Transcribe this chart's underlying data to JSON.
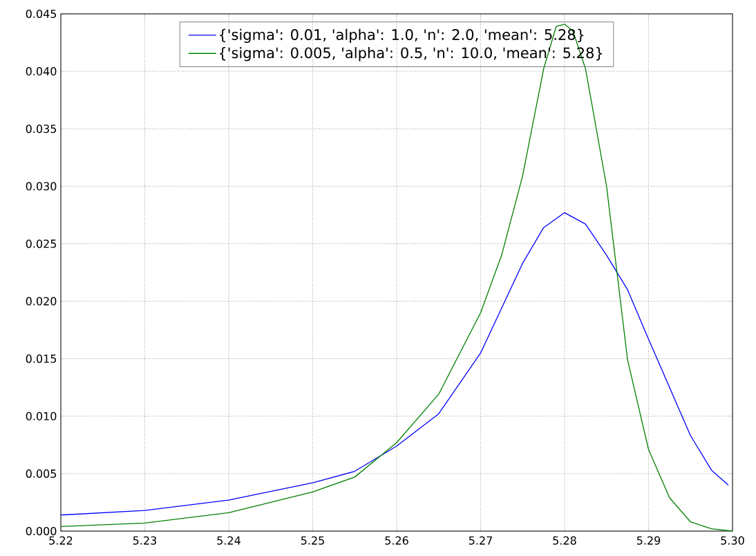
{
  "chart_data": {
    "type": "line",
    "x": [
      5.22,
      5.23,
      5.24,
      5.25,
      5.255,
      5.26,
      5.265,
      5.27,
      5.275,
      5.2775,
      5.28,
      5.2825,
      5.285,
      5.2875,
      5.29,
      5.2925,
      5.295,
      5.2975,
      5.2995
    ],
    "series": [
      {
        "name": "{'sigma': 0.01, 'alpha': 1.0, 'n': 2.0, 'mean': 5.28}",
        "color": "#0000ff",
        "values": [
          0.0014,
          0.0018,
          0.0027,
          0.0042,
          0.0052,
          0.0074,
          0.0102,
          0.0155,
          0.0233,
          0.0264,
          0.0277,
          0.0267,
          0.024,
          0.021,
          0.0167,
          0.0125,
          0.0083,
          0.0053,
          0.004
        ]
      },
      {
        "name": "{'sigma': 0.005, 'alpha': 0.5, 'n': 10.0, 'mean': 5.28}",
        "color": "#008000",
        "x": [
          5.22,
          5.23,
          5.24,
          5.25,
          5.255,
          5.26,
          5.265,
          5.27,
          5.2725,
          5.275,
          5.2775,
          5.279,
          5.28,
          5.281,
          5.2825,
          5.285,
          5.2875,
          5.29,
          5.2925,
          5.295,
          5.2975,
          5.3
        ],
        "values": [
          0.0004,
          0.0007,
          0.0016,
          0.0034,
          0.0047,
          0.0077,
          0.0119,
          0.019,
          0.024,
          0.0309,
          0.0402,
          0.0439,
          0.0441,
          0.0435,
          0.0402,
          0.03,
          0.0149,
          0.0071,
          0.0029,
          0.0008,
          0.0002,
          0.0
        ]
      }
    ],
    "xlim": [
      5.22,
      5.3
    ],
    "xticks": [
      5.22,
      5.23,
      5.24,
      5.25,
      5.26,
      5.27,
      5.28,
      5.29,
      {
        "value": 5.3,
        "label": "5.30"
      }
    ],
    "ylim": [
      0,
      0.045
    ],
    "yticks": [
      {
        "value": 0,
        "label": "0.000"
      },
      0.005,
      {
        "value": 0.01,
        "label": "0.010"
      },
      0.015,
      {
        "value": 0.02,
        "label": "0.020"
      },
      0.025,
      {
        "value": 0.03,
        "label": "0.030"
      },
      0.035,
      {
        "value": 0.04,
        "label": "0.040"
      },
      0.045
    ],
    "grid": true,
    "legend": "top"
  }
}
